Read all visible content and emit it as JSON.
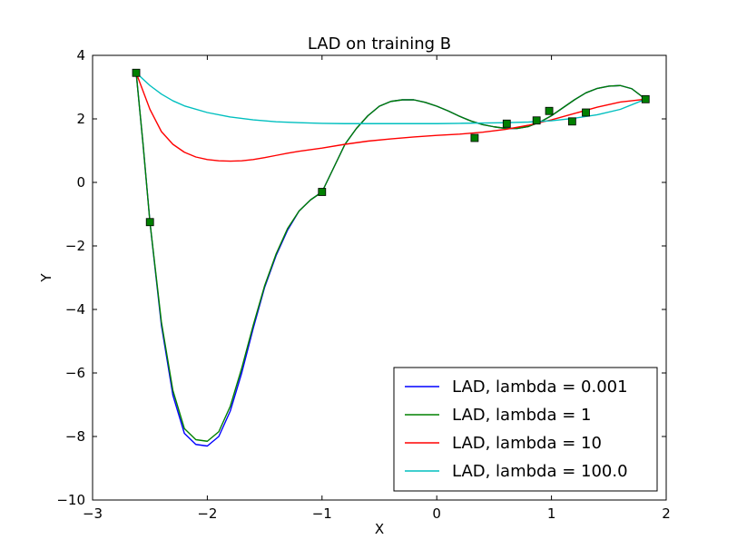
{
  "chart_data": {
    "type": "line",
    "title": "LAD on training B",
    "xlabel": "X",
    "ylabel": "Y",
    "xlim": [
      -3,
      2
    ],
    "ylim": [
      -10,
      4
    ],
    "xticks": [
      -3,
      -2,
      -1,
      0,
      1,
      2
    ],
    "yticks": [
      -10,
      -8,
      -6,
      -4,
      -2,
      0,
      2,
      4
    ],
    "xtick_labels": [
      "−3",
      "−2",
      "−1",
      "0",
      "1",
      "2"
    ],
    "ytick_labels": [
      "−10",
      "−8",
      "−6",
      "−4",
      "−2",
      "0",
      "2",
      "4"
    ],
    "grid": false,
    "legend_position": "lower-right",
    "series": [
      {
        "name": "LAD, lambda = 0.001",
        "color": "#0000ff",
        "points": [
          [
            -2.62,
            3.45
          ],
          [
            -2.56,
            1.2
          ],
          [
            -2.5,
            -1.25
          ],
          [
            -2.4,
            -4.5
          ],
          [
            -2.3,
            -6.7
          ],
          [
            -2.2,
            -7.9
          ],
          [
            -2.1,
            -8.25
          ],
          [
            -2.0,
            -8.3
          ],
          [
            -1.9,
            -8.0
          ],
          [
            -1.8,
            -7.2
          ],
          [
            -1.7,
            -6.0
          ],
          [
            -1.6,
            -4.6
          ],
          [
            -1.5,
            -3.3
          ],
          [
            -1.4,
            -2.3
          ],
          [
            -1.3,
            -1.5
          ],
          [
            -1.2,
            -0.9
          ],
          [
            -1.1,
            -0.55
          ],
          [
            -1.0,
            -0.3
          ],
          [
            -0.9,
            0.45
          ],
          [
            -0.8,
            1.2
          ],
          [
            -0.7,
            1.7
          ],
          [
            -0.6,
            2.1
          ],
          [
            -0.5,
            2.4
          ],
          [
            -0.4,
            2.55
          ],
          [
            -0.3,
            2.6
          ],
          [
            -0.2,
            2.6
          ],
          [
            -0.1,
            2.52
          ],
          [
            0.0,
            2.4
          ],
          [
            0.1,
            2.25
          ],
          [
            0.2,
            2.08
          ],
          [
            0.3,
            1.93
          ],
          [
            0.4,
            1.82
          ],
          [
            0.5,
            1.75
          ],
          [
            0.6,
            1.7
          ],
          [
            0.7,
            1.7
          ],
          [
            0.8,
            1.76
          ],
          [
            0.9,
            1.9
          ],
          [
            1.0,
            2.1
          ],
          [
            1.1,
            2.35
          ],
          [
            1.2,
            2.6
          ],
          [
            1.3,
            2.82
          ],
          [
            1.4,
            2.96
          ],
          [
            1.5,
            3.03
          ],
          [
            1.6,
            3.05
          ],
          [
            1.7,
            2.95
          ],
          [
            1.82,
            2.62
          ]
        ]
      },
      {
        "name": "LAD, lambda = 1",
        "color": "#008000",
        "points": [
          [
            -2.62,
            3.45
          ],
          [
            -2.56,
            1.2
          ],
          [
            -2.5,
            -1.25
          ],
          [
            -2.4,
            -4.4
          ],
          [
            -2.3,
            -6.55
          ],
          [
            -2.2,
            -7.75
          ],
          [
            -2.1,
            -8.1
          ],
          [
            -2.0,
            -8.15
          ],
          [
            -1.9,
            -7.85
          ],
          [
            -1.8,
            -7.05
          ],
          [
            -1.7,
            -5.85
          ],
          [
            -1.6,
            -4.5
          ],
          [
            -1.5,
            -3.25
          ],
          [
            -1.4,
            -2.25
          ],
          [
            -1.3,
            -1.45
          ],
          [
            -1.2,
            -0.9
          ],
          [
            -1.1,
            -0.55
          ],
          [
            -1.0,
            -0.3
          ],
          [
            -0.9,
            0.45
          ],
          [
            -0.8,
            1.2
          ],
          [
            -0.7,
            1.7
          ],
          [
            -0.6,
            2.1
          ],
          [
            -0.5,
            2.4
          ],
          [
            -0.4,
            2.55
          ],
          [
            -0.3,
            2.6
          ],
          [
            -0.2,
            2.6
          ],
          [
            -0.1,
            2.52
          ],
          [
            0.0,
            2.4
          ],
          [
            0.1,
            2.25
          ],
          [
            0.2,
            2.08
          ],
          [
            0.3,
            1.93
          ],
          [
            0.4,
            1.82
          ],
          [
            0.5,
            1.75
          ],
          [
            0.6,
            1.7
          ],
          [
            0.7,
            1.7
          ],
          [
            0.8,
            1.76
          ],
          [
            0.9,
            1.9
          ],
          [
            1.0,
            2.1
          ],
          [
            1.1,
            2.35
          ],
          [
            1.2,
            2.6
          ],
          [
            1.3,
            2.82
          ],
          [
            1.4,
            2.96
          ],
          [
            1.5,
            3.03
          ],
          [
            1.6,
            3.05
          ],
          [
            1.7,
            2.95
          ],
          [
            1.82,
            2.62
          ]
        ]
      },
      {
        "name": "LAD, lambda = 10",
        "color": "#ff0000",
        "points": [
          [
            -2.62,
            3.45
          ],
          [
            -2.5,
            2.3
          ],
          [
            -2.4,
            1.6
          ],
          [
            -2.3,
            1.2
          ],
          [
            -2.2,
            0.95
          ],
          [
            -2.1,
            0.8
          ],
          [
            -2.0,
            0.72
          ],
          [
            -1.9,
            0.68
          ],
          [
            -1.8,
            0.67
          ],
          [
            -1.7,
            0.68
          ],
          [
            -1.6,
            0.72
          ],
          [
            -1.5,
            0.78
          ],
          [
            -1.4,
            0.85
          ],
          [
            -1.3,
            0.92
          ],
          [
            -1.2,
            0.98
          ],
          [
            -1.0,
            1.08
          ],
          [
            -0.8,
            1.2
          ],
          [
            -0.6,
            1.3
          ],
          [
            -0.4,
            1.37
          ],
          [
            -0.2,
            1.43
          ],
          [
            0.0,
            1.48
          ],
          [
            0.2,
            1.52
          ],
          [
            0.4,
            1.58
          ],
          [
            0.6,
            1.67
          ],
          [
            0.8,
            1.8
          ],
          [
            1.0,
            1.97
          ],
          [
            1.2,
            2.17
          ],
          [
            1.4,
            2.37
          ],
          [
            1.6,
            2.53
          ],
          [
            1.82,
            2.62
          ]
        ]
      },
      {
        "name": "LAD, lambda = 100.0",
        "color": "#00bfbf",
        "points": [
          [
            -2.62,
            3.45
          ],
          [
            -2.5,
            3.05
          ],
          [
            -2.4,
            2.78
          ],
          [
            -2.3,
            2.57
          ],
          [
            -2.2,
            2.41
          ],
          [
            -2.0,
            2.2
          ],
          [
            -1.8,
            2.06
          ],
          [
            -1.6,
            1.97
          ],
          [
            -1.4,
            1.91
          ],
          [
            -1.2,
            1.88
          ],
          [
            -1.0,
            1.86
          ],
          [
            -0.8,
            1.85
          ],
          [
            -0.6,
            1.85
          ],
          [
            -0.4,
            1.85
          ],
          [
            -0.2,
            1.85
          ],
          [
            0.0,
            1.85
          ],
          [
            0.2,
            1.86
          ],
          [
            0.4,
            1.87
          ],
          [
            0.6,
            1.88
          ],
          [
            0.8,
            1.9
          ],
          [
            1.0,
            1.94
          ],
          [
            1.2,
            2.02
          ],
          [
            1.4,
            2.13
          ],
          [
            1.6,
            2.3
          ],
          [
            1.82,
            2.62
          ]
        ]
      }
    ],
    "training_points": {
      "color": "#008000",
      "x": [
        -2.62,
        -2.5,
        -1.0,
        0.33,
        0.61,
        0.87,
        0.98,
        1.18,
        1.3,
        1.82
      ],
      "y": [
        3.45,
        -1.25,
        -0.3,
        1.4,
        1.85,
        1.95,
        2.25,
        1.92,
        2.2,
        2.62
      ]
    }
  }
}
